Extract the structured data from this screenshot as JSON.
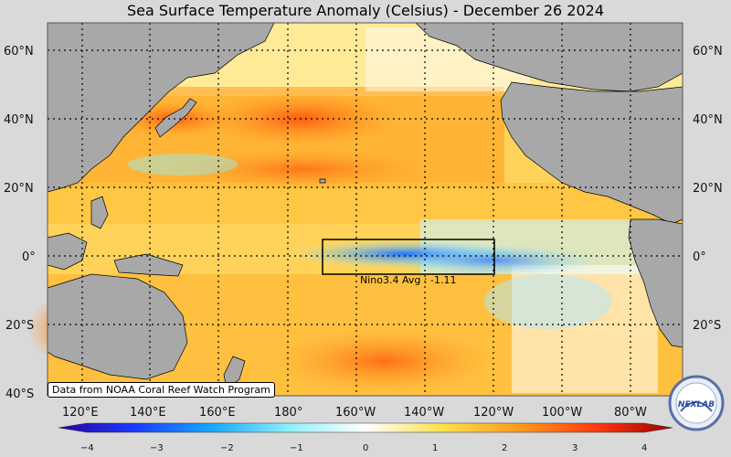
{
  "title": "Sea Surface Temperature Anomaly (Celsius) - December 26 2024",
  "lat_labels": [
    "60°N",
    "40°N",
    "20°N",
    "0°",
    "20°S",
    "40°S"
  ],
  "lon_labels": [
    "120°E",
    "140°E",
    "160°E",
    "180°",
    "160°W",
    "140°W",
    "120°W",
    "100°W",
    "80°W"
  ],
  "colorbar": {
    "ticks": [
      "−4",
      "−3",
      "−2",
      "−1",
      "0",
      "1",
      "2",
      "3",
      "4"
    ],
    "min": -4,
    "max": 4,
    "colors": [
      "#2a00a0",
      "#1a3cff",
      "#18a8ff",
      "#8ef0ff",
      "#ffffff",
      "#ffe14a",
      "#ff9a1a",
      "#ff3a10",
      "#a00000"
    ]
  },
  "nino_label": "Nino3.4 Avg : -1.11",
  "source": "Data from NOAA Coral Reef Watch Program",
  "logo_text": "NEXLAB",
  "colors": {
    "land": "#a8a8a8",
    "ocean_warm": "#ffcf40",
    "ocean_hot": "#ff8a1a",
    "ocean_cold": "#39a8ff",
    "nino_box": "#000000"
  }
}
